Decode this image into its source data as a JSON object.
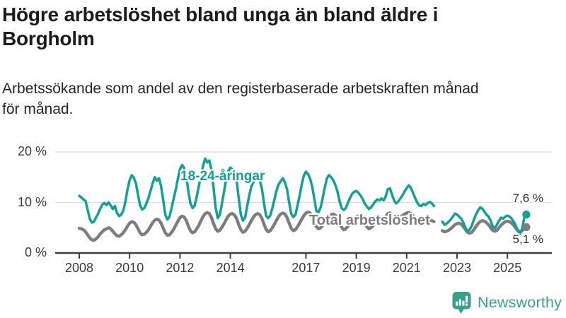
{
  "header": {
    "title": "Högre arbetslöshet bland unga än bland äldre i\nBorgholm",
    "subtitle": "Arbetssökande som andel av den registerbaserade arbetskraften månad\nför månad."
  },
  "colors": {
    "youth_line": "#12a097",
    "total_line": "#7d7d7d",
    "gridline": "#dcdcdc",
    "axis": "#3f3f3f",
    "logo": "#38a18e"
  },
  "chart_data": {
    "type": "line",
    "x_start": "2008-01",
    "x_freq": "monthly",
    "x_ticks": [
      2008,
      2010,
      2012,
      2014,
      2017,
      2019,
      2021,
      2023,
      2025
    ],
    "y_ticks": [
      {
        "value": 0,
        "label": "0 %"
      },
      {
        "value": 10,
        "label": "10 %"
      },
      {
        "value": 20,
        "label": "20 %"
      }
    ],
    "ylim": [
      0,
      22
    ],
    "grid": true,
    "unit": "%",
    "legend_position": "inline-labels",
    "series": [
      {
        "name": "18-24-åringar",
        "color": "#12a097",
        "end_label": "7,6 %",
        "values": [
          11.3,
          11.0,
          10.6,
          10.3,
          8.5,
          6.8,
          6.0,
          6.2,
          7.0,
          7.8,
          8.8,
          9.6,
          9.9,
          9.5,
          10.0,
          9.4,
          8.7,
          9.3,
          7.9,
          7.3,
          7.6,
          8.4,
          10.2,
          12.6,
          14.4,
          15.4,
          14.9,
          13.8,
          11.5,
          9.4,
          8.6,
          8.9,
          9.8,
          10.9,
          12.4,
          13.8,
          15.0,
          14.3,
          14.8,
          13.2,
          10.4,
          7.6,
          6.6,
          7.2,
          8.9,
          10.8,
          12.6,
          14.7,
          16.6,
          17.4,
          16.8,
          15.2,
          12.1,
          9.8,
          8.9,
          9.4,
          11.2,
          13.3,
          15.4,
          17.2,
          18.7,
          17.9,
          18.3,
          16.4,
          12.8,
          8.9,
          6.9,
          7.6,
          9.8,
          12.2,
          14.6,
          16.2,
          16.9,
          16.5,
          16.0,
          14.2,
          10.8,
          7.6,
          6.4,
          7.0,
          9.2,
          11.4,
          13.2,
          14.0,
          14.6,
          15.2,
          14.4,
          12.8,
          9.9,
          7.4,
          6.9,
          7.4,
          8.9,
          10.6,
          12.4,
          13.6,
          14.2,
          14.8,
          14.0,
          12.6,
          10.0,
          7.8,
          7.1,
          7.6,
          9.4,
          11.3,
          13.6,
          15.3,
          16.1,
          15.6,
          14.7,
          13.1,
          10.7,
          8.3,
          8.1,
          9.0,
          10.9,
          13.0,
          14.8,
          15.4,
          15.0,
          14.4,
          13.5,
          12.2,
          10.3,
          8.9,
          8.5,
          8.9,
          9.9,
          10.9,
          11.7,
          12.1,
          12.3,
          11.9,
          11.4,
          10.7,
          9.8,
          9.2,
          8.7,
          9.0,
          9.6,
          10.2,
          10.6,
          10.4,
          10.8,
          10.4,
          11.2,
          12.6,
          12.8,
          11.6,
          10.4,
          9.8,
          10.2,
          10.8,
          11.4,
          12.2,
          12.8,
          13.4,
          12.9,
          11.9,
          10.9,
          10.0,
          9.4,
          9.3,
          9.7,
          9.5,
          9.9,
          10.1,
          9.8,
          9.3,
          null,
          null,
          null,
          6.2,
          5.6,
          5.8,
          6.2,
          6.6,
          7.2,
          7.8,
          7.6,
          7.2,
          6.8,
          6.0,
          5.0,
          4.3,
          4.6,
          5.4,
          6.6,
          7.6,
          8.4,
          9.0,
          8.8,
          8.2,
          7.6,
          7.2,
          6.4,
          5.2,
          4.9,
          5.6,
          6.4,
          7.0,
          6.8,
          7.2,
          7.4,
          7.2,
          6.8,
          6.2,
          5.4,
          4.4,
          3.8,
          4.8,
          6.9,
          7.6
        ]
      },
      {
        "name": "Total arbetslöshet",
        "color": "#7d7d7d",
        "end_label": "5,1 %",
        "values": [
          4.9,
          4.8,
          4.6,
          4.2,
          3.6,
          3.0,
          2.6,
          2.5,
          2.8,
          3.2,
          3.8,
          4.2,
          4.6,
          4.8,
          5.0,
          4.8,
          4.3,
          3.8,
          3.4,
          3.3,
          3.6,
          4.0,
          4.6,
          5.3,
          5.9,
          6.2,
          6.1,
          5.6,
          4.8,
          4.0,
          3.6,
          3.7,
          4.1,
          4.6,
          5.3,
          6.0,
          6.5,
          6.7,
          6.5,
          5.9,
          4.9,
          4.0,
          3.5,
          3.6,
          4.1,
          4.7,
          5.5,
          6.3,
          7.0,
          7.3,
          7.1,
          6.4,
          5.3,
          4.4,
          4.0,
          4.2,
          4.8,
          5.5,
          6.4,
          7.2,
          7.8,
          8.0,
          7.8,
          7.0,
          5.8,
          4.8,
          4.3,
          4.5,
          5.1,
          5.8,
          6.6,
          7.3,
          7.7,
          7.8,
          7.5,
          6.8,
          5.6,
          4.6,
          4.1,
          4.3,
          4.9,
          5.6,
          6.4,
          7.1,
          7.6,
          7.8,
          7.6,
          6.9,
          5.7,
          4.7,
          4.2,
          4.4,
          5.0,
          5.7,
          6.5,
          7.2,
          7.7,
          7.9,
          7.7,
          7.0,
          5.9,
          4.9,
          4.4,
          4.6,
          5.2,
          5.9,
          6.7,
          7.4,
          7.9,
          8.1,
          7.9,
          7.2,
          6.1,
          5.2,
          4.8,
          5.0,
          5.5,
          6.1,
          6.8,
          7.4,
          7.6,
          7.7,
          7.5,
          6.9,
          5.9,
          5.1,
          4.6,
          4.8,
          5.3,
          5.9,
          6.5,
          7.0,
          7.2,
          7.3,
          7.1,
          6.6,
          5.8,
          5.2,
          4.8,
          5.0,
          5.4,
          5.9,
          6.4,
          6.8,
          6.8,
          6.9,
          7.2,
          7.8,
          7.9,
          7.5,
          7.0,
          6.8,
          6.9,
          7.1,
          7.4,
          7.7,
          7.9,
          8.0,
          7.8,
          7.4,
          6.9,
          6.4,
          6.0,
          5.9,
          6.1,
          6.2,
          6.3,
          6.4,
          6.4,
          6.2,
          null,
          null,
          null,
          4.4,
          4.2,
          4.3,
          4.5,
          4.8,
          5.2,
          5.6,
          5.8,
          5.9,
          5.7,
          5.2,
          4.6,
          4.1,
          3.9,
          4.1,
          4.6,
          5.2,
          5.8,
          6.2,
          6.4,
          6.3,
          6.0,
          5.6,
          5.0,
          4.5,
          4.3,
          4.5,
          5.0,
          5.5,
          5.9,
          6.2,
          6.3,
          6.2,
          5.9,
          5.5,
          4.9,
          4.4,
          4.2,
          4.4,
          4.9,
          5.1
        ]
      }
    ]
  },
  "footer": {
    "brand": "Newsworthy"
  }
}
